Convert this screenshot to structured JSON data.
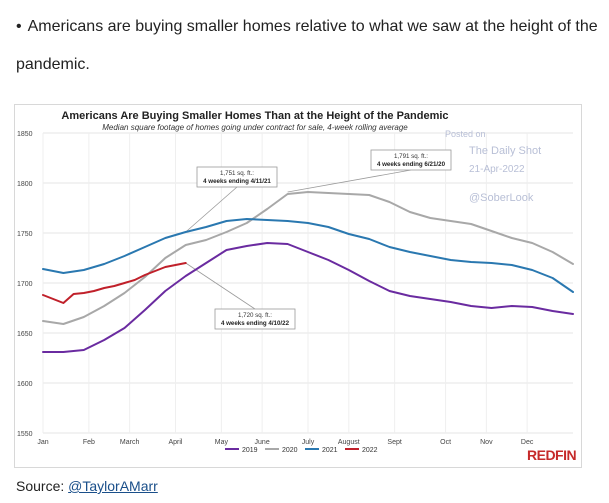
{
  "bullet": {
    "symbol": "•",
    "text": "Americans are buying smaller homes relative to what we saw at the height of the pandemic."
  },
  "source": {
    "label": "Source: ",
    "link_text": "@TaylorAMarr"
  },
  "watermark": {
    "posted_on": "Posted on",
    "site": "The Daily Shot",
    "date": "21-Apr-2022",
    "handle": "@SoberLook"
  },
  "brand": {
    "logo": "REDFIN",
    "color": "#c62a2a"
  },
  "chart_data": {
    "type": "line",
    "title": "Americans Are Buying Smaller Homes Than at the Height of the Pandemic",
    "subtitle": "Median square footage of homes going under contract for sale, 4-week rolling average",
    "xlabel": "",
    "ylabel": "",
    "ylim": [
      1550,
      1850
    ],
    "yticks": [
      1550,
      1600,
      1650,
      1700,
      1750,
      1800,
      1850
    ],
    "xlim": [
      1,
      53
    ],
    "xticks": [
      {
        "label": "Jan",
        "week": 1
      },
      {
        "label": "Feb",
        "week": 5.5
      },
      {
        "label": "March",
        "week": 9.5
      },
      {
        "label": "April",
        "week": 14
      },
      {
        "label": "May",
        "week": 18.5
      },
      {
        "label": "June",
        "week": 22.5
      },
      {
        "label": "July",
        "week": 27
      },
      {
        "label": "August",
        "week": 31
      },
      {
        "label": "Sept",
        "week": 35.5
      },
      {
        "label": "Oct",
        "week": 40.5
      },
      {
        "label": "Nov",
        "week": 44.5
      },
      {
        "label": "Dec",
        "week": 48.5
      }
    ],
    "grid": true,
    "legend": "bottom",
    "series": [
      {
        "name": "2019",
        "color": "#6a2ba0",
        "x": [
          1,
          3,
          5,
          7,
          9,
          11,
          13,
          15,
          17,
          19,
          21,
          23,
          25,
          27,
          29,
          31,
          33,
          35,
          37,
          39,
          41,
          43,
          45,
          47,
          49,
          51,
          53
        ],
        "values": [
          1631,
          1631,
          1633,
          1643,
          1655,
          1673,
          1692,
          1707,
          1720,
          1733,
          1737,
          1740,
          1739,
          1731,
          1723,
          1713,
          1702,
          1692,
          1687,
          1684,
          1681,
          1677,
          1675,
          1677,
          1676,
          1672,
          1669
        ]
      },
      {
        "name": "2020",
        "color": "#a8a8a8",
        "x": [
          1,
          3,
          5,
          7,
          9,
          11,
          13,
          15,
          17,
          19,
          21,
          23,
          25,
          27,
          29,
          31,
          33,
          35,
          37,
          39,
          41,
          43,
          45,
          47,
          49,
          51,
          53
        ],
        "values": [
          1662,
          1659,
          1666,
          1677,
          1690,
          1706,
          1725,
          1738,
          1743,
          1751,
          1760,
          1774,
          1789,
          1791,
          1790,
          1789,
          1788,
          1781,
          1771,
          1765,
          1762,
          1759,
          1752,
          1745,
          1740,
          1731,
          1719
        ]
      },
      {
        "name": "2021",
        "color": "#2a78b0",
        "x": [
          1,
          3,
          5,
          7,
          9,
          11,
          13,
          15,
          17,
          19,
          21,
          23,
          25,
          27,
          29,
          31,
          33,
          35,
          37,
          39,
          41,
          43,
          45,
          47,
          49,
          51,
          53
        ],
        "values": [
          1714,
          1710,
          1713,
          1719,
          1727,
          1736,
          1745,
          1751,
          1756,
          1762,
          1764,
          1763,
          1762,
          1760,
          1756,
          1749,
          1744,
          1736,
          1731,
          1727,
          1723,
          1721,
          1720,
          1718,
          1713,
          1705,
          1691
        ]
      },
      {
        "name": "2022",
        "color": "#c0202a",
        "x": [
          1,
          2,
          3,
          4,
          5,
          6,
          7,
          8,
          9,
          10,
          11,
          12,
          13,
          14,
          15
        ],
        "values": [
          1688,
          1684,
          1680,
          1689,
          1690,
          1692,
          1695,
          1697,
          1700,
          1703,
          1708,
          1712,
          1716,
          1718,
          1720
        ]
      }
    ],
    "annotations": [
      {
        "line1": "1,751 sq. ft.:",
        "line2": "4 weeks ending 4/11/21",
        "week": 15,
        "value": 1751
      },
      {
        "line1": "1,791 sq. ft.:",
        "line2": "4 weeks ending 6/21/20",
        "week": 25,
        "value": 1791
      },
      {
        "line1": "1,720 sq. ft.:",
        "line2": "4 weeks ending 4/10/22",
        "week": 15,
        "value": 1720
      }
    ]
  }
}
